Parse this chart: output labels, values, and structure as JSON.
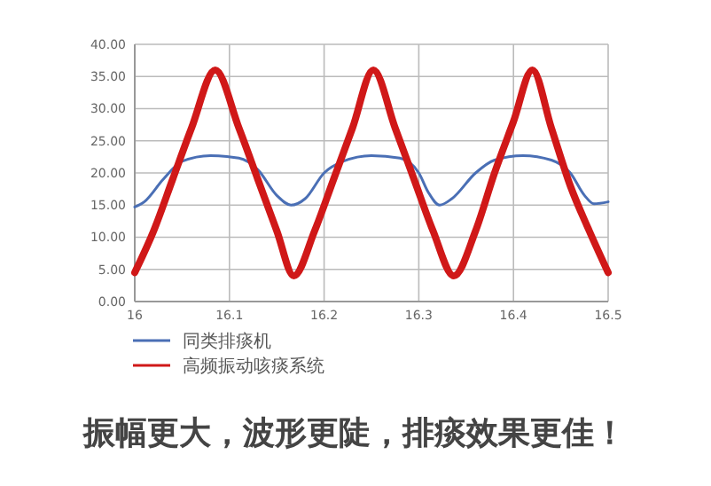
{
  "chart_data": {
    "type": "line",
    "annotations": [
      "振幅更大，波形更陡，排痰效果更佳！"
    ],
    "xlim": [
      16,
      16.5
    ],
    "xticks": [
      16,
      16.1,
      16.2,
      16.3,
      16.4,
      16.5
    ],
    "ylim": [
      0,
      40
    ],
    "yticks": [
      {
        "value": 0,
        "label": "0.00"
      },
      {
        "value": 5,
        "label": "5.00"
      },
      {
        "value": 10,
        "label": "10.00"
      },
      {
        "value": 15,
        "label": "15.00"
      },
      {
        "value": 20,
        "label": "20.00"
      },
      {
        "value": 25,
        "label": "25.00"
      },
      {
        "value": 30,
        "label": "30.00"
      },
      {
        "value": 35,
        "label": "35.00"
      },
      {
        "value": 40,
        "label": "40.00"
      }
    ],
    "grid": true,
    "legend": "bottom",
    "series": [
      {
        "name": "同类排痰机",
        "color": "#4a6fb5",
        "x": [
          16,
          16.01,
          16.03,
          16.05,
          16.08,
          16.11,
          16.13,
          16.15,
          16.165,
          16.18,
          16.2,
          16.22,
          16.25,
          16.28,
          16.3,
          16.31,
          16.322,
          16.335,
          16.36,
          16.38,
          16.41,
          16.44,
          16.46,
          16.475,
          16.485,
          16.5
        ],
        "values": [
          14.7,
          15.5,
          19,
          21.8,
          22.7,
          22.3,
          20.5,
          16.5,
          15,
          16,
          20,
          21.8,
          22.7,
          22.3,
          20,
          17,
          15,
          16,
          20,
          22,
          22.7,
          22,
          20,
          16.5,
          15.2,
          15.5
        ]
      },
      {
        "name": "高频振动咳痰系统",
        "color": "#d01818",
        "x": [
          16,
          16.02,
          16.04,
          16.06,
          16.085,
          16.11,
          16.13,
          16.15,
          16.168,
          16.19,
          16.21,
          16.23,
          16.252,
          16.275,
          16.295,
          16.315,
          16.337,
          16.36,
          16.38,
          16.4,
          16.42,
          16.44,
          16.46,
          16.48,
          16.5
        ],
        "values": [
          4.5,
          11,
          19,
          27,
          36,
          27,
          19,
          11,
          4,
          11,
          19,
          27,
          36,
          27,
          19,
          11,
          4,
          11,
          20,
          28,
          36,
          27,
          18,
          11,
          4.5
        ]
      }
    ]
  }
}
